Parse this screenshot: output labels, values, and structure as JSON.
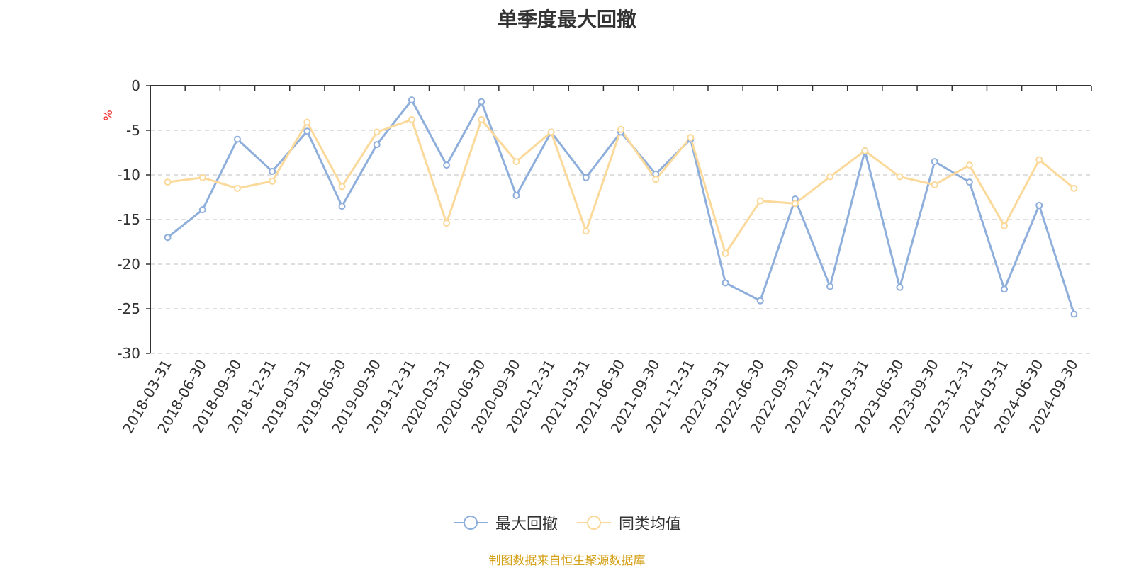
{
  "chart_data": {
    "type": "line",
    "title": "单季度最大回撤",
    "ylabel": "%",
    "xlabel": "",
    "ylim": [
      -30,
      0
    ],
    "yticks": [
      0,
      -5,
      -10,
      -15,
      -20,
      -25,
      -30
    ],
    "grid": true,
    "legend_position": "bottom",
    "categories": [
      "2018-03-31",
      "2018-06-30",
      "2018-09-30",
      "2018-12-31",
      "2019-03-31",
      "2019-06-30",
      "2019-09-30",
      "2019-12-31",
      "2020-03-31",
      "2020-06-30",
      "2020-09-30",
      "2020-12-31",
      "2021-03-31",
      "2021-06-30",
      "2021-09-30",
      "2021-12-31",
      "2022-03-31",
      "2022-06-30",
      "2022-09-30",
      "2022-12-31",
      "2023-03-31",
      "2023-06-30",
      "2023-09-30",
      "2023-12-31",
      "2024-03-31",
      "2024-06-30",
      "2024-09-30"
    ],
    "series": [
      {
        "name": "最大回撤",
        "color": "#8eaedb",
        "values": [
          -17.0,
          -13.9,
          -6.0,
          -9.6,
          -5.1,
          -13.5,
          -6.6,
          -1.6,
          -8.9,
          -1.8,
          -12.3,
          -5.2,
          -10.3,
          -5.2,
          -9.9,
          -6.0,
          -22.1,
          -24.1,
          -12.7,
          -22.5,
          -7.3,
          -22.6,
          -8.5,
          -10.8,
          -22.8,
          -13.4,
          -25.6
        ]
      },
      {
        "name": "同类均值",
        "color": "#fbd99a",
        "values": [
          -10.8,
          -10.3,
          -11.5,
          -10.7,
          -4.1,
          -11.3,
          -5.2,
          -3.8,
          -15.4,
          -3.8,
          -8.5,
          -5.2,
          -16.3,
          -4.9,
          -10.5,
          -5.8,
          -18.8,
          -12.9,
          -13.2,
          -10.2,
          -7.3,
          -10.2,
          -11.1,
          -8.9,
          -15.7,
          -8.3,
          -11.5
        ]
      }
    ]
  },
  "source_note": "制图数据来自恒生聚源数据库"
}
